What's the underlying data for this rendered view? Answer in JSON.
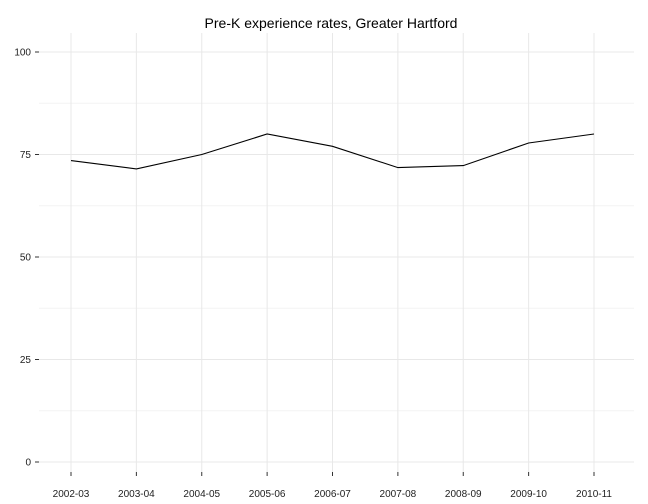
{
  "chart_data": {
    "type": "line",
    "title": "Pre-K experience rates, Greater Hartford",
    "xlabel": "",
    "ylabel": "",
    "categories": [
      "2002-03",
      "2003-04",
      "2004-05",
      "2005-06",
      "2006-07",
      "2007-08",
      "2008-09",
      "2009-10",
      "2010-11"
    ],
    "series": [
      {
        "values": [
          73.5,
          71.5,
          75,
          80,
          77,
          71.8,
          72.3,
          77.8,
          80
        ]
      }
    ],
    "ylim": [
      0,
      100
    ],
    "yticks": [
      "0",
      "25",
      "50",
      "75",
      "100"
    ],
    "grid": true,
    "legend": "none",
    "line_color": "#000000"
  }
}
